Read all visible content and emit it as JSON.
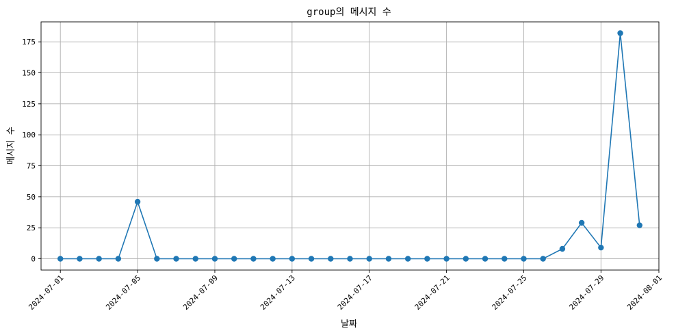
{
  "chart_data": {
    "type": "line",
    "title": "group의 메시지 수",
    "xlabel": "날짜",
    "ylabel": "메시지 수",
    "grid": true,
    "color": "#1f77b4",
    "marker": "circle",
    "ylim": [
      -9.1,
      191.1
    ],
    "xlim": [
      "2024-06-30",
      "2024-08-01"
    ],
    "y_ticks": [
      0,
      25,
      50,
      75,
      100,
      125,
      150,
      175
    ],
    "x_ticks": [
      "2024-07-01",
      "2024-07-05",
      "2024-07-09",
      "2024-07-13",
      "2024-07-17",
      "2024-07-21",
      "2024-07-25",
      "2024-07-29",
      "2024-08-01"
    ],
    "series": [
      {
        "x": [
          "2024-07-01",
          "2024-07-02",
          "2024-07-03",
          "2024-07-04",
          "2024-07-05",
          "2024-07-06",
          "2024-07-07",
          "2024-07-08",
          "2024-07-09",
          "2024-07-10",
          "2024-07-11",
          "2024-07-12",
          "2024-07-13",
          "2024-07-14",
          "2024-07-15",
          "2024-07-16",
          "2024-07-17",
          "2024-07-18",
          "2024-07-19",
          "2024-07-20",
          "2024-07-21",
          "2024-07-22",
          "2024-07-23",
          "2024-07-24",
          "2024-07-25",
          "2024-07-26",
          "2024-07-27",
          "2024-07-28",
          "2024-07-29",
          "2024-07-30",
          "2024-07-31"
        ],
        "values": [
          0,
          0,
          0,
          0,
          46,
          0,
          0,
          0,
          0,
          0,
          0,
          0,
          0,
          0,
          0,
          0,
          0,
          0,
          0,
          0,
          0,
          0,
          0,
          0,
          0,
          0,
          8,
          29,
          9,
          182,
          27
        ]
      }
    ]
  }
}
